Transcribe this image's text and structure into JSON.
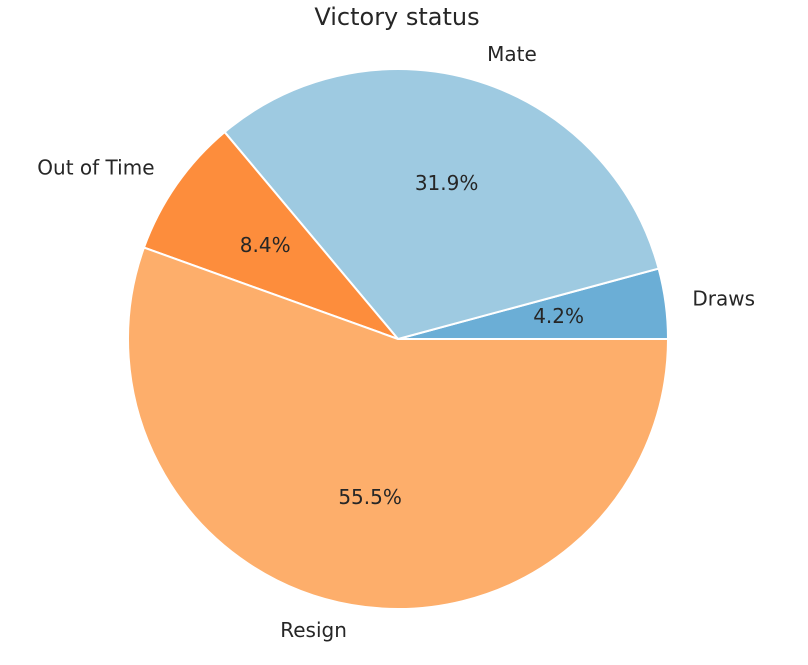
{
  "chart_data": {
    "type": "pie",
    "title": "Victory status",
    "start_angle_deg": 0,
    "direction": "counterclockwise",
    "slices": [
      {
        "label": "Draws",
        "value": 4.2,
        "pct_label": "4.2%",
        "color": "#6baed6"
      },
      {
        "label": "Mate",
        "value": 31.9,
        "pct_label": "31.9%",
        "color": "#9ecae1"
      },
      {
        "label": "Out of Time",
        "value": 8.4,
        "pct_label": "8.4%",
        "color": "#fd8d3c"
      },
      {
        "label": "Resign",
        "value": 55.5,
        "pct_label": "55.5%",
        "color": "#fdae6b"
      }
    ]
  }
}
